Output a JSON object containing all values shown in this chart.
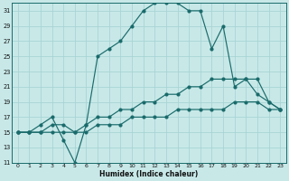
{
  "xlabel": "Humidex (Indice chaleur)",
  "bg_color": "#c8e8e8",
  "line_color": "#1a6b6b",
  "grid_color": "#a8d4d4",
  "xlim": [
    -0.5,
    23.5
  ],
  "ylim": [
    11,
    32
  ],
  "xticks": [
    0,
    1,
    2,
    3,
    4,
    5,
    6,
    7,
    8,
    9,
    10,
    11,
    12,
    13,
    14,
    15,
    16,
    17,
    18,
    19,
    20,
    21,
    22,
    23
  ],
  "yticks": [
    11,
    13,
    15,
    17,
    19,
    21,
    23,
    25,
    27,
    29,
    31
  ],
  "line_main_x": [
    0,
    1,
    2,
    3,
    4,
    5,
    6,
    7,
    8,
    9,
    10,
    11,
    12,
    13,
    14,
    15,
    16,
    17,
    18,
    19,
    20,
    21,
    22,
    23
  ],
  "line_main_y": [
    15,
    15,
    16,
    17,
    14,
    11,
    16,
    25,
    26,
    27,
    29,
    31,
    32,
    32,
    32,
    31,
    31,
    26,
    29,
    21,
    22,
    20,
    19,
    18
  ],
  "line_upper_x": [
    0,
    1,
    2,
    3,
    4,
    5,
    6,
    7,
    8,
    9,
    10,
    11,
    12,
    13,
    14,
    15,
    16,
    17,
    18,
    19,
    20,
    21,
    22,
    23
  ],
  "line_upper_y": [
    15,
    15,
    15,
    16,
    16,
    15,
    16,
    17,
    17,
    18,
    18,
    19,
    19,
    20,
    20,
    21,
    21,
    22,
    22,
    22,
    22,
    22,
    19,
    18
  ],
  "line_lower_x": [
    0,
    1,
    2,
    3,
    4,
    5,
    6,
    7,
    8,
    9,
    10,
    11,
    12,
    13,
    14,
    15,
    16,
    17,
    18,
    19,
    20,
    21,
    22,
    23
  ],
  "line_lower_y": [
    15,
    15,
    15,
    15,
    15,
    15,
    15,
    16,
    16,
    16,
    17,
    17,
    17,
    17,
    18,
    18,
    18,
    18,
    18,
    19,
    19,
    19,
    18,
    18
  ]
}
